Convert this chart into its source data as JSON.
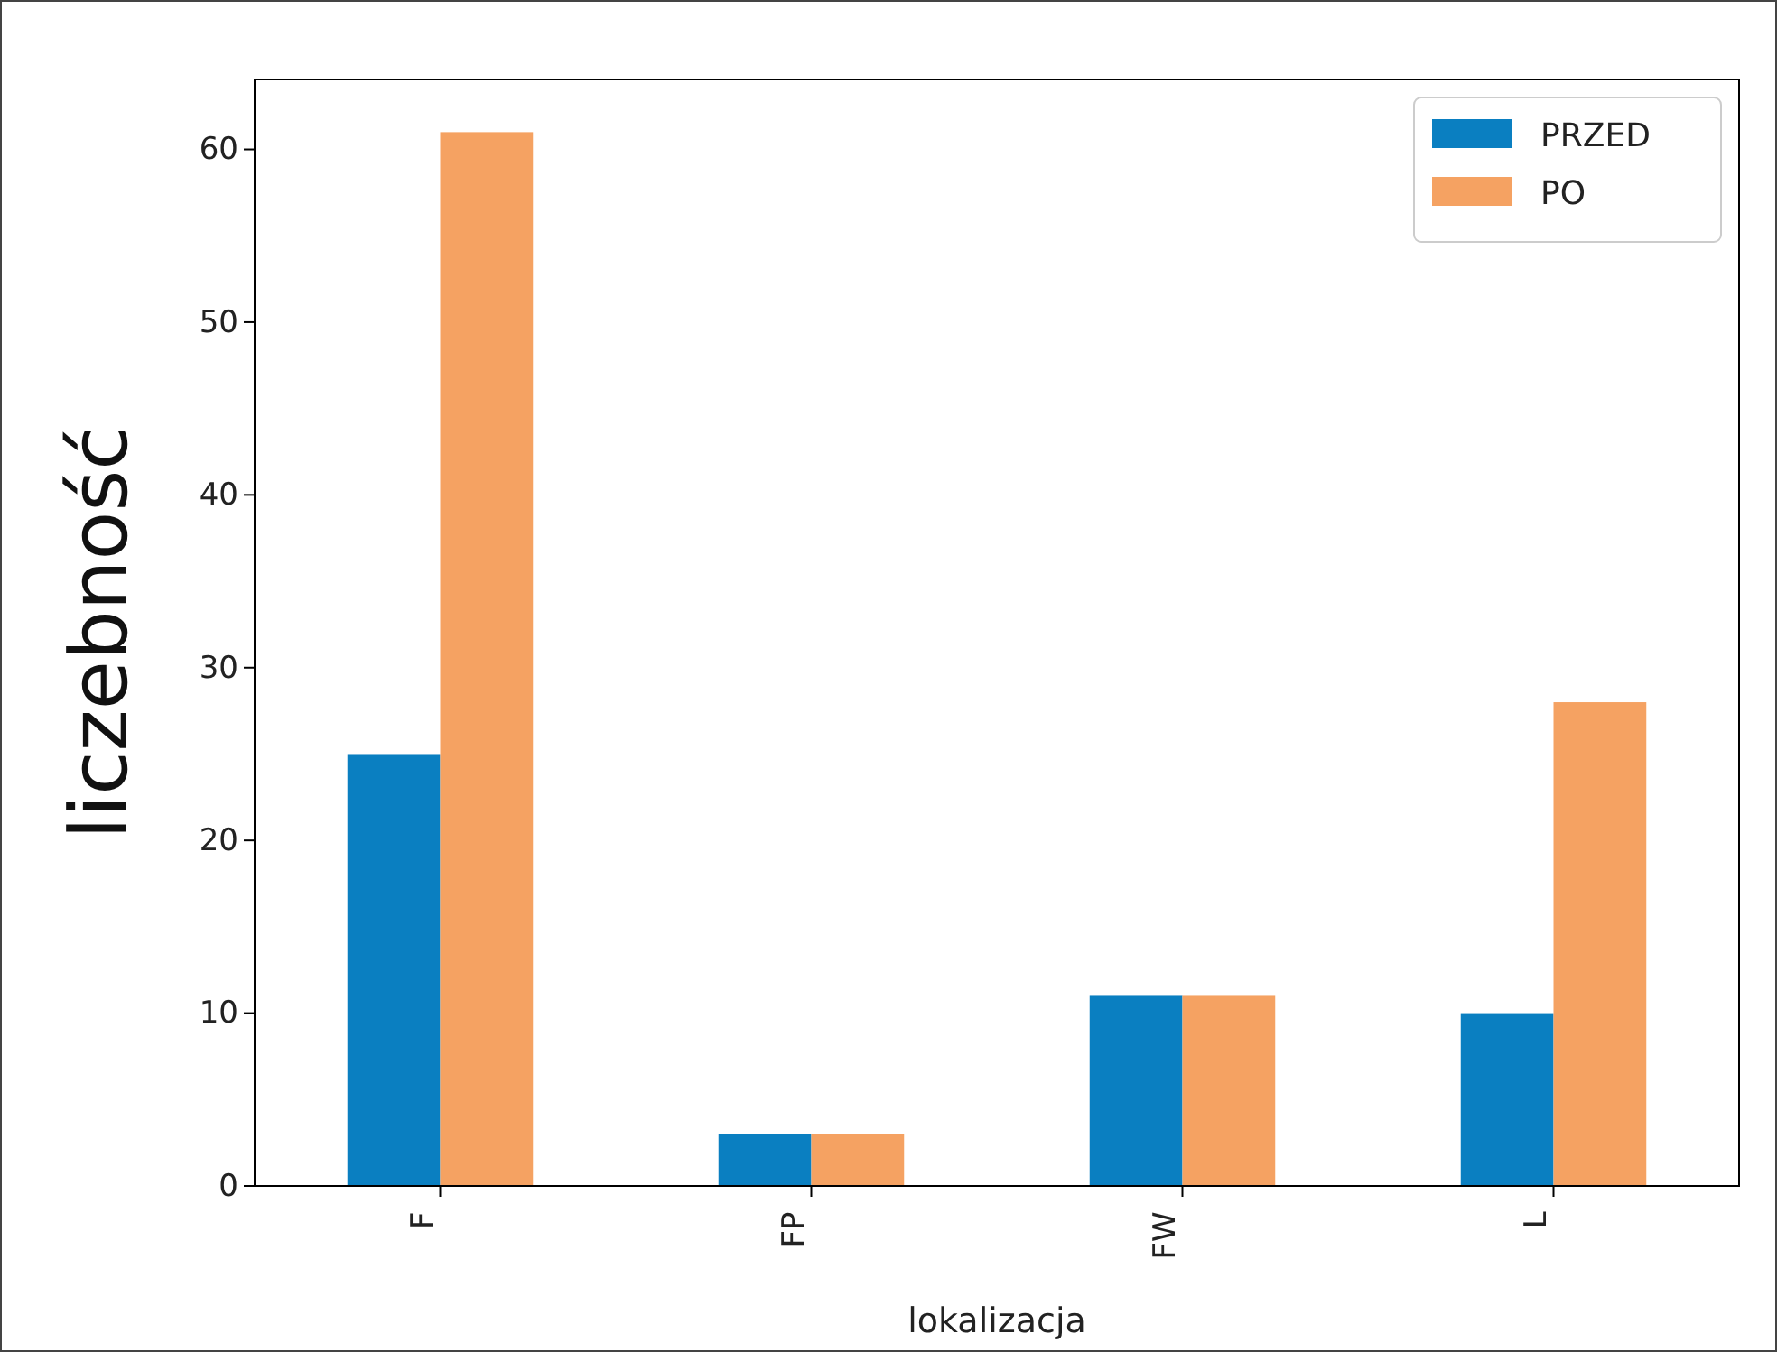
{
  "chart_data": {
    "type": "bar",
    "xlabel": "lokalizacja",
    "ylabel": "liczebność",
    "categories": [
      "F",
      "FP",
      "FW",
      "L"
    ],
    "series": [
      {
        "name": "PRZED",
        "color": "#0a7fc1",
        "values": [
          25,
          3,
          11,
          10
        ]
      },
      {
        "name": "PO",
        "color": "#f5a262",
        "values": [
          61,
          3,
          11,
          28
        ]
      }
    ],
    "ylim": [
      0,
      64.05
    ],
    "yticks": [
      0,
      10,
      20,
      30,
      40,
      50,
      60
    ],
    "grid": false,
    "legend": "top right"
  }
}
